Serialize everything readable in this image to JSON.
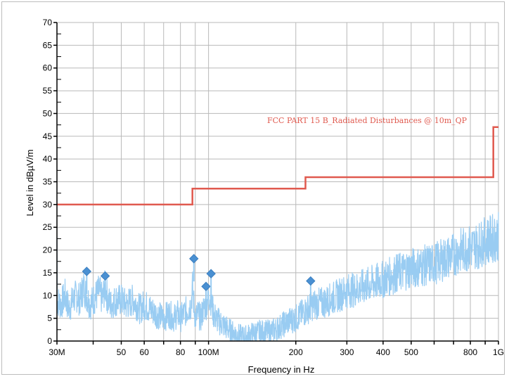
{
  "chart_data": {
    "type": "line",
    "xlabel": "Frequency in Hz",
    "ylabel": "Level in dBµV/m",
    "x_scale": "log",
    "xlim": [
      30,
      1000
    ],
    "ylim": [
      0,
      70
    ],
    "grid": true,
    "y_ticks": [
      0,
      5,
      10,
      15,
      20,
      25,
      30,
      35,
      40,
      45,
      50,
      55,
      60,
      65,
      70
    ],
    "x_ticks": [
      {
        "value": 30,
        "label": "30M"
      },
      {
        "value": 50,
        "label": "50"
      },
      {
        "value": 60,
        "label": "60"
      },
      {
        "value": 80,
        "label": "80"
      },
      {
        "value": 100,
        "label": "100M"
      },
      {
        "value": 200,
        "label": "200"
      },
      {
        "value": 300,
        "label": "300"
      },
      {
        "value": 400,
        "label": "400"
      },
      {
        "value": 500,
        "label": "500"
      },
      {
        "value": 800,
        "label": "800"
      },
      {
        "value": 1000,
        "label": "1G"
      }
    ],
    "x_grid_lines": [
      30,
      40,
      50,
      60,
      70,
      80,
      90,
      100,
      200,
      300,
      400,
      500,
      600,
      700,
      800,
      900,
      1000
    ],
    "series": [
      {
        "name": "FCC PART 15 B_Radiated Disturbances @ 10m_QP",
        "color": "#e05a4f",
        "step": true,
        "points": [
          [
            30,
            30
          ],
          [
            88,
            30
          ],
          [
            88,
            33.5
          ],
          [
            216,
            33.5
          ],
          [
            216,
            36
          ],
          [
            960,
            36
          ],
          [
            960,
            47
          ],
          [
            1000,
            47
          ]
        ]
      },
      {
        "color": "#99ccf2",
        "points": [
          [
            30,
            9
          ],
          [
            31,
            8
          ],
          [
            32,
            10
          ],
          [
            33,
            7
          ],
          [
            34,
            9
          ],
          [
            35,
            10
          ],
          [
            36,
            9
          ],
          [
            37,
            12
          ],
          [
            38,
            10
          ],
          [
            39,
            8
          ],
          [
            40,
            9
          ],
          [
            41,
            10
          ],
          [
            42,
            11
          ],
          [
            43,
            9
          ],
          [
            44,
            12
          ],
          [
            45,
            9
          ],
          [
            46,
            8
          ],
          [
            48,
            9
          ],
          [
            50,
            9
          ],
          [
            52,
            8
          ],
          [
            55,
            9
          ],
          [
            58,
            7
          ],
          [
            60,
            8
          ],
          [
            63,
            7
          ],
          [
            66,
            6
          ],
          [
            70,
            5
          ],
          [
            73,
            6
          ],
          [
            76,
            5
          ],
          [
            78,
            6
          ],
          [
            80,
            5
          ],
          [
            82,
            6
          ],
          [
            85,
            7
          ],
          [
            87,
            8
          ],
          [
            88,
            12
          ],
          [
            89,
            8
          ],
          [
            90,
            5
          ],
          [
            92,
            6
          ],
          [
            94,
            5
          ],
          [
            96,
            7
          ],
          [
            98,
            8
          ],
          [
            100,
            9
          ],
          [
            101,
            10
          ],
          [
            102,
            9
          ],
          [
            104,
            6
          ],
          [
            106,
            5
          ],
          [
            110,
            4
          ],
          [
            115,
            3
          ],
          [
            120,
            2
          ],
          [
            125,
            1.5
          ],
          [
            130,
            1
          ],
          [
            135,
            1
          ],
          [
            140,
            1.5
          ],
          [
            150,
            2
          ],
          [
            160,
            2
          ],
          [
            170,
            2.5
          ],
          [
            180,
            3.5
          ],
          [
            190,
            4.5
          ],
          [
            200,
            5
          ],
          [
            210,
            6
          ],
          [
            220,
            7
          ],
          [
            230,
            8
          ],
          [
            250,
            8.5
          ],
          [
            270,
            9.5
          ],
          [
            300,
            11
          ],
          [
            330,
            11.5
          ],
          [
            360,
            12.5
          ],
          [
            400,
            13.5
          ],
          [
            450,
            15
          ],
          [
            500,
            16
          ],
          [
            550,
            16.5
          ],
          [
            600,
            17
          ],
          [
            650,
            18
          ],
          [
            700,
            19
          ],
          [
            750,
            20
          ],
          [
            800,
            20.5
          ],
          [
            850,
            21
          ],
          [
            900,
            22
          ],
          [
            950,
            22.5
          ],
          [
            1000,
            23
          ]
        ]
      }
    ],
    "markers": [
      {
        "x": 38,
        "y": 15.3
      },
      {
        "x": 44,
        "y": 14.3
      },
      {
        "x": 89,
        "y": 18.1
      },
      {
        "x": 98,
        "y": 12
      },
      {
        "x": 102,
        "y": 14.8
      },
      {
        "x": 225,
        "y": 13.2
      }
    ],
    "annotations": [
      {
        "text": "FCC PART 15 B_Radiated Disturbances @ 10m_QP"
      }
    ]
  },
  "colors": {
    "grid": "#b9b9b9",
    "axis": "#000000",
    "limit": "#e05a4f",
    "trace": "#99ccf2",
    "marker": "#4a90d2"
  }
}
